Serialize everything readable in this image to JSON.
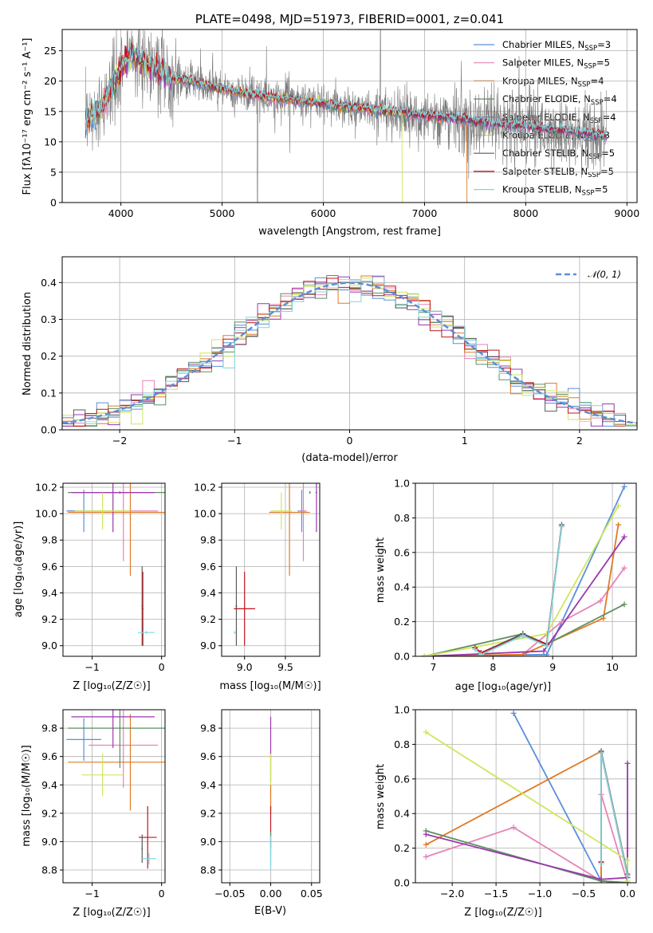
{
  "colors": {
    "chabrier_miles": "#5b8fd9",
    "salpeter_miles": "#e683b8",
    "kroupa_miles": "#de7b25",
    "chabrier_elodie": "#5f8f61",
    "salpeter_elodie": "#9a38ad",
    "kroupa_elodie": "#cfe65e",
    "chabrier_stelib": "#5a5a5a",
    "salpeter_stelib": "#c0151f",
    "kroupa_stelib": "#82d6dd",
    "spectrum": "#7a7a7a",
    "normal": "#5b8fd9"
  },
  "chart_data": [
    {
      "type": "line",
      "title": "PLATE=0498, MJD=51973, FIBERID=0001, z=0.041",
      "xlabel": "wavelength [Angstrom, rest frame]",
      "ylabel": "Flux [fλ10⁻¹⁷ erg cm⁻² s⁻¹ A⁻¹]",
      "xlim": [
        3420,
        9100
      ],
      "ylim": [
        0,
        28.5
      ],
      "xticks": [
        "4000",
        "5000",
        "6000",
        "7000",
        "8000",
        "9000"
      ],
      "yticks": [
        "0",
        "5",
        "10",
        "15",
        "20",
        "25"
      ],
      "legend_position": "top-right",
      "series": [
        {
          "name": "Chabrier MILES, N",
          "sub": "SSP",
          "suffix": "=3"
        },
        {
          "name": "Salpeter MILES, N",
          "sub": "SSP",
          "suffix": "=5"
        },
        {
          "name": "Kroupa MILES, N",
          "sub": "SSP",
          "suffix": "=4"
        },
        {
          "name": "Chabrier ELODIE, N",
          "sub": "SSP",
          "suffix": "=4"
        },
        {
          "name": "Salpeter ELODIE, N",
          "sub": "SSP",
          "suffix": "=4"
        },
        {
          "name": "Kroupa ELODIE, N",
          "sub": "SSP",
          "suffix": "=3"
        },
        {
          "name": "Chabrier STELIB, N",
          "sub": "SSP",
          "suffix": "=5"
        },
        {
          "name": "Salpeter STELIB, N",
          "sub": "SSP",
          "suffix": "=5"
        },
        {
          "name": "Kroupa STELIB, N",
          "sub": "SSP",
          "suffix": "=5"
        }
      ],
      "model_continuum": {
        "x": [
          3650,
          3700,
          3800,
          3900,
          4000,
          4100,
          4200,
          4300,
          4400,
          4500,
          4700,
          4900,
          5100,
          5300,
          5500,
          5700,
          5900,
          6100,
          6300,
          6500,
          6700,
          6900,
          7100,
          7300,
          7500,
          7700,
          8000,
          8300,
          8600,
          8800
        ],
        "y": [
          13.5,
          14.2,
          15.5,
          18.5,
          22.5,
          24.5,
          23.5,
          22.5,
          21.5,
          20.5,
          20.0,
          19.0,
          18.3,
          17.8,
          17.2,
          16.9,
          16.6,
          16.0,
          15.7,
          15.3,
          14.9,
          14.5,
          14.2,
          13.9,
          13.4,
          13.0,
          12.6,
          12.0,
          11.4,
          11.0
        ]
      }
    },
    {
      "type": "histogram",
      "xlabel": "(data-model)/error",
      "ylabel": "Normed distribution",
      "xlim": [
        -2.5,
        2.5
      ],
      "ylim": [
        0,
        0.47
      ],
      "xticks": [
        "−2",
        "−1",
        "0",
        "1",
        "2"
      ],
      "yticks": [
        "0.0",
        "0.1",
        "0.2",
        "0.3",
        "0.4"
      ],
      "legend_position": "top-right",
      "reference_curve": {
        "name": "N(0,1)",
        "mean": 0,
        "sigma": 1
      },
      "bin_width": 0.1
    },
    {
      "type": "errorbar",
      "xlabel": "Z [log₁₀(Z/Z☉)]",
      "ylabel": "age  [log₁₀(age/yr)]",
      "xlim": [
        -1.42,
        0.05
      ],
      "ylim": [
        8.92,
        10.23
      ],
      "xticks": [
        "−1",
        "0"
      ],
      "yticks": [
        "9.0",
        "9.2",
        "9.4",
        "9.6",
        "9.8",
        "10.0",
        "10.2"
      ]
    },
    {
      "type": "errorbar",
      "xlabel": "mass [log₁₀(M/M☉)]",
      "ylabel": "",
      "xlim": [
        8.72,
        9.92
      ],
      "ylim": [
        8.92,
        10.23
      ],
      "xticks": [
        "9.0",
        "9.5"
      ],
      "yticks": [
        "9.0",
        "9.2",
        "9.4",
        "9.6",
        "9.8",
        "10.0",
        "10.2"
      ]
    },
    {
      "type": "line",
      "xlabel": "age  [log₁₀(age/yr)]",
      "ylabel": "mass weight",
      "xlim": [
        6.7,
        10.4
      ],
      "ylim": [
        0,
        1.0
      ],
      "xticks": [
        "7",
        "8",
        "9",
        "10"
      ],
      "yticks": [
        "0.0",
        "0.2",
        "0.4",
        "0.6",
        "0.8",
        "1.0"
      ],
      "series": [
        {
          "key": "chabrier_miles",
          "x": [
            6.85,
            8.9,
            10.2
          ],
          "y": [
            0.0,
            0.01,
            0.98
          ]
        },
        {
          "key": "salpeter_miles",
          "x": [
            6.85,
            8.5,
            9.15,
            9.8,
            10.2
          ],
          "y": [
            0.0,
            0.01,
            0.2,
            0.32,
            0.51
          ]
        },
        {
          "key": "kroupa_miles",
          "x": [
            6.85,
            8.5,
            9.85,
            10.1
          ],
          "y": [
            0.0,
            0.01,
            0.22,
            0.76
          ]
        },
        {
          "key": "chabrier_elodie",
          "x": [
            6.85,
            8.5,
            8.9,
            10.2
          ],
          "y": [
            0.0,
            0.13,
            0.07,
            0.3
          ]
        },
        {
          "key": "salpeter_elodie",
          "x": [
            6.85,
            8.85,
            10.2
          ],
          "y": [
            0.0,
            0.03,
            0.69
          ]
        },
        {
          "key": "kroupa_elodie",
          "x": [
            6.85,
            8.9,
            10.1
          ],
          "y": [
            0.0,
            0.13,
            0.87
          ]
        },
        {
          "key": "chabrier_stelib",
          "x": [
            7.7,
            7.8,
            8.5,
            8.9,
            9.15
          ],
          "y": [
            0.05,
            0.02,
            0.13,
            0.07,
            0.76
          ]
        },
        {
          "key": "salpeter_stelib",
          "x": [
            7.7,
            7.8,
            8.5,
            8.9,
            9.15
          ],
          "y": [
            0.05,
            0.02,
            0.12,
            0.07,
            0.75
          ]
        },
        {
          "key": "kroupa_stelib",
          "x": [
            7.7,
            7.8,
            8.5,
            8.9,
            9.15
          ],
          "y": [
            0.04,
            0.01,
            0.12,
            0.06,
            0.75
          ]
        }
      ]
    },
    {
      "type": "errorbar",
      "xlabel": "Z [log₁₀(Z/Z☉)]",
      "ylabel": "mass [log₁₀(M/M☉)]",
      "xlim": [
        -1.42,
        0.05
      ],
      "ylim": [
        8.71,
        9.93
      ],
      "xticks": [
        "−1",
        "0"
      ],
      "yticks": [
        "8.8",
        "9.0",
        "9.2",
        "9.4",
        "9.6",
        "9.8"
      ]
    },
    {
      "type": "errorbar",
      "xlabel": "E(B-V)",
      "ylabel": "",
      "xlim": [
        -0.06,
        0.06
      ],
      "ylim": [
        8.71,
        9.93
      ],
      "xticks": [
        "−0.05",
        "0.00",
        "0.05"
      ],
      "yticks": [
        "8.8",
        "9.0",
        "9.2",
        "9.4",
        "9.6",
        "9.8"
      ]
    },
    {
      "type": "line",
      "xlabel": "Z [log₁₀(Z/Z☉)]",
      "ylabel": "mass weight",
      "xlim": [
        -2.42,
        0.1
      ],
      "ylim": [
        0,
        1.0
      ],
      "xticks": [
        "−2.0",
        "−1.5",
        "−1.0",
        "−0.5",
        "0.0"
      ],
      "yticks": [
        "0.0",
        "0.2",
        "0.4",
        "0.6",
        "0.8",
        "1.0"
      ],
      "series": [
        {
          "key": "chabrier_miles",
          "x": [
            -1.3,
            -0.3,
            0.0
          ],
          "y": [
            0.98,
            0.01,
            0.0
          ]
        },
        {
          "key": "salpeter_miles",
          "x": [
            -2.3,
            -1.3,
            -0.3,
            -0.3,
            0.0,
            0.0
          ],
          "y": [
            0.15,
            0.32,
            0.01,
            0.51,
            0.0,
            0.2
          ]
        },
        {
          "key": "kroupa_miles",
          "x": [
            -2.3,
            -0.3,
            -0.3,
            0.0
          ],
          "y": [
            0.22,
            0.76,
            0.01,
            0.0
          ]
        },
        {
          "key": "chabrier_elodie",
          "x": [
            -2.3,
            -0.3,
            0.0
          ],
          "y": [
            0.3,
            0.01,
            0.0
          ]
        },
        {
          "key": "salpeter_elodie",
          "x": [
            -2.3,
            -0.3,
            0.0,
            0.0
          ],
          "y": [
            0.28,
            0.02,
            0.03,
            0.69
          ]
        },
        {
          "key": "kroupa_elodie",
          "x": [
            -2.3,
            0.0,
            0.0
          ],
          "y": [
            0.87,
            0.13,
            0.01
          ]
        },
        {
          "key": "chabrier_stelib",
          "x": [
            -0.3,
            -0.3,
            0.0
          ],
          "y": [
            0.12,
            0.76,
            0.05
          ]
        },
        {
          "key": "salpeter_stelib",
          "x": [
            -0.3,
            -0.3,
            0.0
          ],
          "y": [
            0.12,
            0.75,
            0.04
          ]
        },
        {
          "key": "kroupa_stelib",
          "x": [
            -0.3,
            -0.3,
            0.0
          ],
          "y": [
            0.11,
            0.75,
            0.04
          ]
        }
      ]
    }
  ],
  "errorbars": {
    "age_Z": [
      {
        "key": "chabrier_miles",
        "x": -1.12,
        "xerr": 0.25,
        "y": 10.02,
        "yerr": 0.16
      },
      {
        "key": "salpeter_miles",
        "x": -0.55,
        "xerr": 0.5,
        "y": 10.02,
        "yerr": 0.38
      },
      {
        "key": "kroupa_miles",
        "x": -0.45,
        "xerr": 0.9,
        "y": 10.01,
        "yerr": 0.48
      },
      {
        "key": "chabrier_elodie",
        "x": -0.6,
        "xerr": 0.75,
        "y": 10.16,
        "yerr": 0.01
      },
      {
        "key": "salpeter_elodie",
        "x": -0.7,
        "xerr": 0.6,
        "y": 10.16,
        "yerr": 0.3
      },
      {
        "key": "kroupa_elodie",
        "x": -0.85,
        "xerr": 0.4,
        "y": 10.02,
        "yerr": 0.14
      },
      {
        "key": "chabrier_stelib",
        "x": -0.28,
        "xerr": 0.01,
        "y": 9.3,
        "yerr": 0.3
      },
      {
        "key": "salpeter_stelib",
        "x": -0.27,
        "xerr": 0.01,
        "y": 9.28,
        "yerr": 0.28
      },
      {
        "key": "kroupa_stelib",
        "x": -0.22,
        "xerr": 0.12,
        "y": 9.1,
        "yerr": 0.01
      }
    ],
    "age_mass": [
      {
        "key": "chabrier_miles",
        "x": 9.7,
        "xerr": 0.05,
        "y": 10.02,
        "yerr": 0.16
      },
      {
        "key": "salpeter_miles",
        "x": 9.72,
        "xerr": 0.04,
        "y": 10.02,
        "yerr": 0.38
      },
      {
        "key": "kroupa_miles",
        "x": 9.55,
        "xerr": 0.25,
        "y": 10.01,
        "yerr": 0.48
      },
      {
        "key": "chabrier_elodie",
        "x": 9.8,
        "xerr": 0.01,
        "y": 10.16,
        "yerr": 0.01
      },
      {
        "key": "salpeter_elodie",
        "x": 9.88,
        "xerr": 0.01,
        "y": 10.16,
        "yerr": 0.3
      },
      {
        "key": "kroupa_elodie",
        "x": 9.45,
        "xerr": 0.13,
        "y": 10.02,
        "yerr": 0.14
      },
      {
        "key": "chabrier_stelib",
        "x": 8.9,
        "xerr": 0.01,
        "y": 9.3,
        "yerr": 0.3
      },
      {
        "key": "salpeter_stelib",
        "x": 9.0,
        "xerr": 0.13,
        "y": 9.28,
        "yerr": 0.28
      },
      {
        "key": "kroupa_stelib",
        "x": 8.88,
        "xerr": 0.01,
        "y": 9.1,
        "yerr": 0.01
      }
    ],
    "mass_Z": [
      {
        "key": "chabrier_miles",
        "x": -1.12,
        "xerr": 0.25,
        "y": 9.72,
        "yerr": 0.15
      },
      {
        "key": "salpeter_miles",
        "x": -0.55,
        "xerr": 0.5,
        "y": 9.68,
        "yerr": 0.3
      },
      {
        "key": "kroupa_miles",
        "x": -0.45,
        "xerr": 0.9,
        "y": 9.56,
        "yerr": 0.34
      },
      {
        "key": "chabrier_elodie",
        "x": -0.6,
        "xerr": 0.75,
        "y": 9.8,
        "yerr": 0.28
      },
      {
        "key": "salpeter_elodie",
        "x": -0.7,
        "xerr": 0.6,
        "y": 9.88,
        "yerr": 0.22
      },
      {
        "key": "kroupa_elodie",
        "x": -0.85,
        "xerr": 0.3,
        "y": 9.47,
        "yerr": 0.15
      },
      {
        "key": "chabrier_stelib",
        "x": -0.28,
        "xerr": 0.01,
        "y": 8.95,
        "yerr": 0.1
      },
      {
        "key": "salpeter_stelib",
        "x": -0.2,
        "xerr": 0.13,
        "y": 9.03,
        "yerr": 0.22
      },
      {
        "key": "kroupa_stelib",
        "x": -0.18,
        "xerr": 0.1,
        "y": 8.88,
        "yerr": 0.04
      }
    ],
    "mass_ebv": [
      {
        "key": "salpeter_elodie",
        "x": 0.0,
        "y": 9.65,
        "yerr": 0.23
      },
      {
        "key": "kroupa_elodie",
        "x": 0.0,
        "y": 9.45,
        "yerr": 0.17
      },
      {
        "key": "kroupa_miles",
        "x": 0.0,
        "y": 9.3,
        "yerr": 0.1
      },
      {
        "key": "salpeter_stelib",
        "x": 0.0,
        "y": 9.1,
        "yerr": 0.15
      },
      {
        "key": "chabrier_elodie",
        "x": 0.0,
        "y": 8.95,
        "yerr": 0.12
      },
      {
        "key": "kroupa_stelib",
        "x": 0.0,
        "y": 8.92,
        "yerr": 0.12
      }
    ]
  }
}
